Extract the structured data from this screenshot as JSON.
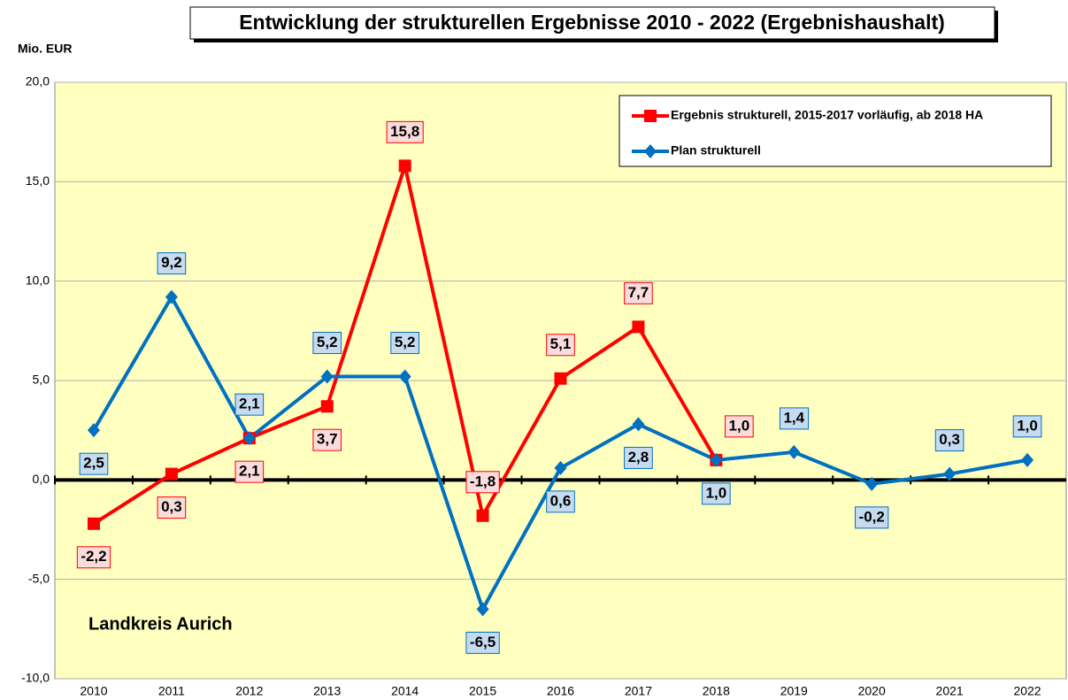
{
  "chart_data": {
    "type": "line",
    "title": "Entwicklung der strukturellen Ergebnisse 2010 - 2022 (Ergebnishaushalt)",
    "y_axis_label": "Mio. EUR",
    "annotation": "Landkreis Aurich",
    "categories": [
      "2010",
      "2011",
      "2012",
      "2013",
      "2014",
      "2015",
      "2016",
      "2017",
      "2018",
      "2019",
      "2020",
      "2021",
      "2022"
    ],
    "series": [
      {
        "name": "Ergebnis strukturell, 2015-2017 vorläufig, ab 2018 HA",
        "color": "#ff0000",
        "marker": "square",
        "values": [
          -2.2,
          0.3,
          2.1,
          3.7,
          15.8,
          -1.8,
          5.1,
          7.7,
          1.0,
          null,
          null,
          null,
          null
        ],
        "value_labels": [
          "-2,2",
          "0,3",
          "2,1",
          "3,7",
          "15,8",
          "-1,8",
          "5,1",
          "7,7",
          "1,0",
          null,
          null,
          null,
          null
        ]
      },
      {
        "name": "Plan strukturell",
        "color": "#0070c0",
        "marker": "diamond",
        "values": [
          2.5,
          9.2,
          2.1,
          5.2,
          5.2,
          -6.5,
          0.6,
          2.8,
          1.0,
          1.4,
          -0.2,
          0.3,
          1.0
        ],
        "value_labels": [
          "2,5",
          "9,2",
          "2,1",
          "5,2",
          "5,2",
          "-6,5",
          "0,6",
          "2,8",
          "1,0",
          "1,4",
          "-0,2",
          "0,3",
          "1,0"
        ]
      }
    ],
    "ylim": [
      -10,
      20
    ],
    "yticks": [
      {
        "value": -10,
        "label": "-10,0"
      },
      {
        "value": -5,
        "label": "-5,0"
      },
      {
        "value": 0,
        "label": "0,0"
      },
      {
        "value": 5,
        "label": "5,0"
      },
      {
        "value": 10,
        "label": "10,0"
      },
      {
        "value": 15,
        "label": "15,0"
      },
      {
        "value": 20,
        "label": "20,0"
      }
    ],
    "grid": true,
    "legend": "top-right"
  }
}
